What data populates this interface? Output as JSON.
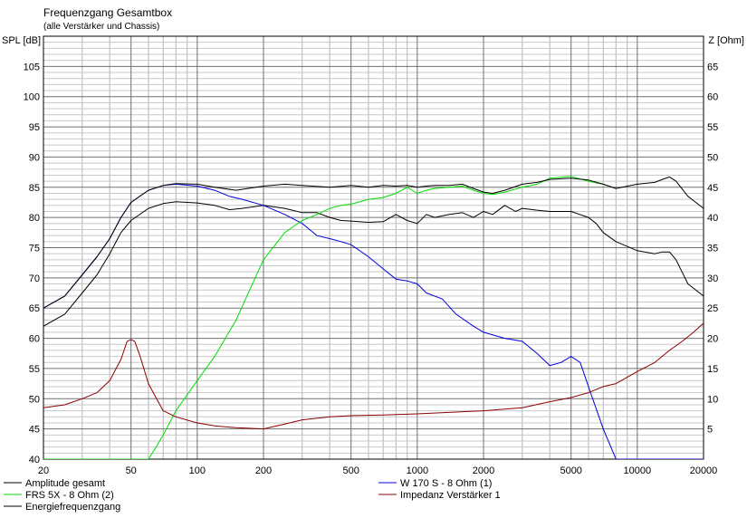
{
  "chart_data": {
    "type": "line",
    "title": "Frequenzgang Gesamtbox",
    "subtitle": "(alle Verstärker und Chassis)",
    "y_left_label": "SPL [dB]",
    "y_right_label": "Z [Ohm]",
    "x_scale": "log",
    "x_range": [
      20,
      20000
    ],
    "y_left_range": [
      40,
      110
    ],
    "y_right_range": [
      0,
      70
    ],
    "x_ticks": [
      20,
      50,
      100,
      200,
      500,
      1000,
      2000,
      5000,
      10000,
      20000
    ],
    "x_tick_labels": [
      "20",
      "50",
      "100",
      "200",
      "500",
      "1000",
      "2000",
      "5000",
      "10000",
      "20000"
    ],
    "y_left_ticks": [
      40,
      45,
      50,
      55,
      60,
      65,
      70,
      75,
      80,
      85,
      90,
      95,
      100,
      105
    ],
    "y_right_ticks": [
      5,
      10,
      15,
      20,
      25,
      30,
      35,
      40,
      45,
      50,
      55,
      60,
      65
    ],
    "grid": true,
    "legend_position": "bottom",
    "series": [
      {
        "name": "Amplitude gesamt",
        "color": "#000000",
        "axis": "left",
        "points": [
          [
            20,
            62
          ],
          [
            25,
            64
          ],
          [
            30,
            67.5
          ],
          [
            35,
            70.5
          ],
          [
            40,
            74
          ],
          [
            45,
            77.5
          ],
          [
            50,
            79.5
          ],
          [
            60,
            81.5
          ],
          [
            70,
            82.3
          ],
          [
            80,
            82.6
          ],
          [
            100,
            82.4
          ],
          [
            120,
            82
          ],
          [
            140,
            81.3
          ],
          [
            160,
            81.5
          ],
          [
            200,
            82
          ],
          [
            250,
            81.5
          ],
          [
            300,
            80.8
          ],
          [
            350,
            80.8
          ],
          [
            400,
            80
          ],
          [
            450,
            79.5
          ],
          [
            500,
            79.4
          ],
          [
            600,
            79.2
          ],
          [
            700,
            79.3
          ],
          [
            800,
            80.5
          ],
          [
            900,
            79.5
          ],
          [
            1000,
            79
          ],
          [
            1100,
            80.5
          ],
          [
            1200,
            80
          ],
          [
            1400,
            80.5
          ],
          [
            1600,
            80.8
          ],
          [
            1800,
            80
          ],
          [
            2000,
            81
          ],
          [
            2200,
            80.5
          ],
          [
            2500,
            82
          ],
          [
            2800,
            81
          ],
          [
            3000,
            81.5
          ],
          [
            3500,
            81.2
          ],
          [
            4000,
            81
          ],
          [
            5000,
            81
          ],
          [
            6000,
            80
          ],
          [
            6500,
            79
          ],
          [
            7000,
            77.5
          ],
          [
            8000,
            76
          ],
          [
            10000,
            74.5
          ],
          [
            12000,
            74
          ],
          [
            13000,
            74.3
          ],
          [
            14000,
            74.3
          ],
          [
            15000,
            73
          ],
          [
            17000,
            69
          ],
          [
            20000,
            67
          ]
        ]
      },
      {
        "name": "W 170 S - 8 Ohm (1)",
        "color": "#0000dd",
        "axis": "left",
        "points": [
          [
            20,
            65
          ],
          [
            25,
            67
          ],
          [
            30,
            70.5
          ],
          [
            35,
            73.5
          ],
          [
            40,
            76.5
          ],
          [
            45,
            80
          ],
          [
            50,
            82.5
          ],
          [
            60,
            84.5
          ],
          [
            70,
            85.3
          ],
          [
            80,
            85.5
          ],
          [
            100,
            85.2
          ],
          [
            120,
            84.5
          ],
          [
            140,
            83.5
          ],
          [
            160,
            83
          ],
          [
            200,
            82
          ],
          [
            250,
            80.5
          ],
          [
            300,
            79
          ],
          [
            350,
            77
          ],
          [
            400,
            76.5
          ],
          [
            450,
            76
          ],
          [
            500,
            75.5
          ],
          [
            600,
            73.5
          ],
          [
            700,
            71.5
          ],
          [
            800,
            69.8
          ],
          [
            900,
            69.5
          ],
          [
            1000,
            69
          ],
          [
            1100,
            67.5
          ],
          [
            1300,
            66.5
          ],
          [
            1500,
            64
          ],
          [
            1800,
            62
          ],
          [
            2000,
            61
          ],
          [
            2500,
            60
          ],
          [
            3000,
            59.5
          ],
          [
            3500,
            57.5
          ],
          [
            4000,
            55.5
          ],
          [
            4500,
            56
          ],
          [
            5000,
            57
          ],
          [
            5500,
            56
          ],
          [
            6000,
            52
          ],
          [
            7000,
            45
          ],
          [
            8000,
            40
          ],
          [
            20000,
            40
          ]
        ]
      },
      {
        "name": "FRS 5X - 8 Ohm (2)",
        "color": "#00dd00",
        "axis": "left",
        "points": [
          [
            20,
            40
          ],
          [
            60,
            40
          ],
          [
            65,
            42
          ],
          [
            70,
            44
          ],
          [
            80,
            48
          ],
          [
            100,
            53
          ],
          [
            120,
            57
          ],
          [
            150,
            63
          ],
          [
            200,
            73
          ],
          [
            250,
            77.5
          ],
          [
            300,
            79.5
          ],
          [
            350,
            80.5
          ],
          [
            400,
            81.5
          ],
          [
            450,
            82
          ],
          [
            500,
            82.2
          ],
          [
            600,
            83
          ],
          [
            700,
            83.3
          ],
          [
            800,
            84
          ],
          [
            900,
            85
          ],
          [
            1000,
            84
          ],
          [
            1100,
            84.5
          ],
          [
            1200,
            84.8
          ],
          [
            1400,
            85
          ],
          [
            1600,
            85.2
          ],
          [
            1800,
            84.5
          ],
          [
            2000,
            84
          ],
          [
            2200,
            83.8
          ],
          [
            2500,
            84.2
          ],
          [
            3000,
            85
          ],
          [
            3500,
            85.5
          ],
          [
            4000,
            86.5
          ],
          [
            5000,
            86.8
          ],
          [
            6000,
            86
          ],
          [
            7000,
            85.5
          ],
          [
            8000,
            84.8
          ]
        ]
      },
      {
        "name": "Energiefrequenzgang",
        "color": "#000000",
        "axis": "left",
        "points": [
          [
            20,
            65
          ],
          [
            25,
            67
          ],
          [
            30,
            70.5
          ],
          [
            35,
            73.5
          ],
          [
            40,
            76.5
          ],
          [
            45,
            80
          ],
          [
            50,
            82.5
          ],
          [
            60,
            84.5
          ],
          [
            70,
            85.3
          ],
          [
            80,
            85.6
          ],
          [
            100,
            85.5
          ],
          [
            120,
            85
          ],
          [
            150,
            84.5
          ],
          [
            200,
            85.2
          ],
          [
            250,
            85.5
          ],
          [
            300,
            85.3
          ],
          [
            400,
            85
          ],
          [
            500,
            85.3
          ],
          [
            600,
            85
          ],
          [
            700,
            85.3
          ],
          [
            800,
            85.2
          ],
          [
            900,
            85.3
          ],
          [
            1000,
            85
          ],
          [
            1100,
            85.2
          ],
          [
            1200,
            85.3
          ],
          [
            1400,
            85.3
          ],
          [
            1600,
            85.5
          ],
          [
            1800,
            84.8
          ],
          [
            2000,
            84.2
          ],
          [
            2200,
            84
          ],
          [
            2500,
            84.5
          ],
          [
            3000,
            85.5
          ],
          [
            3500,
            85.8
          ],
          [
            4000,
            86.3
          ],
          [
            5000,
            86.5
          ],
          [
            6000,
            86.2
          ],
          [
            7000,
            85.5
          ],
          [
            8000,
            84.8
          ],
          [
            10000,
            85.5
          ],
          [
            12000,
            85.8
          ],
          [
            13000,
            86.3
          ],
          [
            14000,
            86.7
          ],
          [
            15000,
            86
          ],
          [
            17000,
            83.5
          ],
          [
            20000,
            81.5
          ]
        ]
      },
      {
        "name": "Impedanz Verstärker 1",
        "color": "#8b0000",
        "axis": "right",
        "points": [
          [
            20,
            8.5
          ],
          [
            25,
            9
          ],
          [
            30,
            10
          ],
          [
            35,
            11
          ],
          [
            40,
            13
          ],
          [
            45,
            16.5
          ],
          [
            48,
            19.5
          ],
          [
            50,
            19.8
          ],
          [
            52,
            19.5
          ],
          [
            55,
            17
          ],
          [
            60,
            12.5
          ],
          [
            70,
            8
          ],
          [
            80,
            7
          ],
          [
            100,
            6
          ],
          [
            120,
            5.5
          ],
          [
            150,
            5.2
          ],
          [
            200,
            5
          ],
          [
            250,
            5.8
          ],
          [
            300,
            6.5
          ],
          [
            400,
            7
          ],
          [
            500,
            7.2
          ],
          [
            700,
            7.3
          ],
          [
            1000,
            7.5
          ],
          [
            1500,
            7.8
          ],
          [
            2000,
            8
          ],
          [
            3000,
            8.5
          ],
          [
            4000,
            9.5
          ],
          [
            5000,
            10.2
          ],
          [
            6000,
            11
          ],
          [
            7000,
            12
          ],
          [
            8000,
            12.5
          ],
          [
            10000,
            14.5
          ],
          [
            12000,
            16
          ],
          [
            14000,
            18
          ],
          [
            16000,
            19.5
          ],
          [
            18000,
            21
          ],
          [
            20000,
            22.5
          ]
        ]
      }
    ]
  }
}
